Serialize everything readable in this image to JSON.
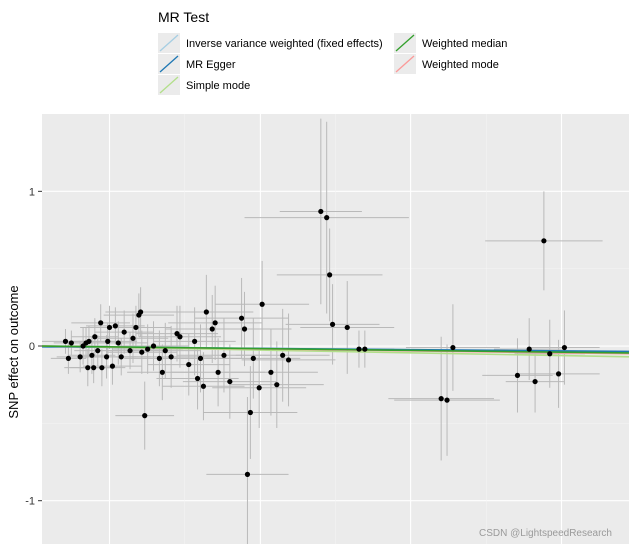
{
  "chart_data": {
    "type": "scatter",
    "title": "",
    "xlabel": "",
    "ylabel": "SNP effect on outcome",
    "ylim": [
      -1.28,
      1.5
    ],
    "xlim": [
      0,
      1
    ],
    "y_ticks": [
      "1",
      "0",
      "-1"
    ],
    "y_tick_values": [
      1,
      0,
      -1
    ],
    "grid": true,
    "legend": {
      "title": "MR Test",
      "placement": "top",
      "items": [
        {
          "label": "Inverse variance weighted (fixed effects)",
          "color": "#a6cee3"
        },
        {
          "label": "Weighted median",
          "color": "#33a02c"
        },
        {
          "label": "MR Egger",
          "color": "#1f78b4"
        },
        {
          "label": "Weighted mode",
          "color": "#fb9a99"
        },
        {
          "label": "Simple mode",
          "color": "#b2df8a"
        }
      ]
    },
    "lines": [
      {
        "name": "Inverse variance weighted (fixed effects)",
        "color": "#a6cee3",
        "x": [
          0,
          1
        ],
        "y": [
          0.0,
          -0.04
        ]
      },
      {
        "name": "MR Egger",
        "color": "#1f78b4",
        "x": [
          0,
          1
        ],
        "y": [
          -0.005,
          -0.035
        ]
      },
      {
        "name": "Simple mode",
        "color": "#b2df8a",
        "x": [
          0,
          1
        ],
        "y": [
          0.0,
          -0.07
        ]
      },
      {
        "name": "Weighted mode",
        "color": "#fb9a99",
        "x": [
          0,
          1
        ],
        "y": [
          0.0,
          -0.05
        ]
      },
      {
        "name": "Weighted median",
        "color": "#33a02c",
        "x": [
          0,
          1
        ],
        "y": [
          0.0,
          -0.045
        ]
      }
    ],
    "points": [
      {
        "x": 0.04,
        "y": 0.03,
        "xerr": 0.04,
        "yerr": 0.08
      },
      {
        "x": 0.045,
        "y": -0.08,
        "xerr": 0.03,
        "yerr": 0.1
      },
      {
        "x": 0.05,
        "y": 0.02,
        "xerr": 0.03,
        "yerr": 0.08
      },
      {
        "x": 0.065,
        "y": -0.07,
        "xerr": 0.04,
        "yerr": 0.1
      },
      {
        "x": 0.07,
        "y": 0.0,
        "xerr": 0.04,
        "yerr": 0.12
      },
      {
        "x": 0.075,
        "y": 0.02,
        "xerr": 0.04,
        "yerr": 0.1
      },
      {
        "x": 0.078,
        "y": -0.14,
        "xerr": 0.04,
        "yerr": 0.12
      },
      {
        "x": 0.08,
        "y": 0.03,
        "xerr": 0.04,
        "yerr": 0.1
      },
      {
        "x": 0.085,
        "y": -0.06,
        "xerr": 0.04,
        "yerr": 0.12
      },
      {
        "x": 0.088,
        "y": -0.14,
        "xerr": 0.04,
        "yerr": 0.1
      },
      {
        "x": 0.09,
        "y": 0.06,
        "xerr": 0.04,
        "yerr": 0.12
      },
      {
        "x": 0.095,
        "y": -0.03,
        "xerr": 0.04,
        "yerr": 0.1
      },
      {
        "x": 0.1,
        "y": 0.15,
        "xerr": 0.05,
        "yerr": 0.12
      },
      {
        "x": 0.102,
        "y": -0.14,
        "xerr": 0.04,
        "yerr": 0.12
      },
      {
        "x": 0.11,
        "y": -0.07,
        "xerr": 0.05,
        "yerr": 0.14
      },
      {
        "x": 0.112,
        "y": 0.03,
        "xerr": 0.05,
        "yerr": 0.12
      },
      {
        "x": 0.115,
        "y": 0.12,
        "xerr": 0.05,
        "yerr": 0.14
      },
      {
        "x": 0.12,
        "y": -0.13,
        "xerr": 0.05,
        "yerr": 0.12
      },
      {
        "x": 0.125,
        "y": 0.13,
        "xerr": 0.05,
        "yerr": 0.12
      },
      {
        "x": 0.13,
        "y": 0.02,
        "xerr": 0.05,
        "yerr": 0.14
      },
      {
        "x": 0.135,
        "y": -0.07,
        "xerr": 0.05,
        "yerr": 0.12
      },
      {
        "x": 0.14,
        "y": 0.09,
        "xerr": 0.05,
        "yerr": 0.14
      },
      {
        "x": 0.15,
        "y": -0.03,
        "xerr": 0.05,
        "yerr": 0.12
      },
      {
        "x": 0.155,
        "y": 0.05,
        "xerr": 0.06,
        "yerr": 0.16
      },
      {
        "x": 0.16,
        "y": 0.12,
        "xerr": 0.06,
        "yerr": 0.14
      },
      {
        "x": 0.165,
        "y": 0.2,
        "xerr": 0.06,
        "yerr": 0.14
      },
      {
        "x": 0.168,
        "y": 0.22,
        "xerr": 0.06,
        "yerr": 0.16
      },
      {
        "x": 0.17,
        "y": -0.04,
        "xerr": 0.06,
        "yerr": 0.14
      },
      {
        "x": 0.175,
        "y": -0.45,
        "xerr": 0.05,
        "yerr": 0.22
      },
      {
        "x": 0.18,
        "y": -0.02,
        "xerr": 0.06,
        "yerr": 0.16
      },
      {
        "x": 0.19,
        "y": 0.0,
        "xerr": 0.06,
        "yerr": 0.16
      },
      {
        "x": 0.2,
        "y": -0.08,
        "xerr": 0.06,
        "yerr": 0.18
      },
      {
        "x": 0.205,
        "y": -0.17,
        "xerr": 0.06,
        "yerr": 0.18
      },
      {
        "x": 0.21,
        "y": -0.03,
        "xerr": 0.06,
        "yerr": 0.18
      },
      {
        "x": 0.22,
        "y": -0.07,
        "xerr": 0.07,
        "yerr": 0.2
      },
      {
        "x": 0.23,
        "y": 0.08,
        "xerr": 0.07,
        "yerr": 0.18
      },
      {
        "x": 0.235,
        "y": 0.06,
        "xerr": 0.07,
        "yerr": 0.2
      },
      {
        "x": 0.25,
        "y": -0.12,
        "xerr": 0.07,
        "yerr": 0.2
      },
      {
        "x": 0.26,
        "y": 0.03,
        "xerr": 0.07,
        "yerr": 0.22
      },
      {
        "x": 0.265,
        "y": -0.21,
        "xerr": 0.07,
        "yerr": 0.2
      },
      {
        "x": 0.27,
        "y": -0.08,
        "xerr": 0.07,
        "yerr": 0.22
      },
      {
        "x": 0.275,
        "y": -0.26,
        "xerr": 0.07,
        "yerr": 0.22
      },
      {
        "x": 0.28,
        "y": 0.22,
        "xerr": 0.08,
        "yerr": 0.24
      },
      {
        "x": 0.29,
        "y": 0.11,
        "xerr": 0.08,
        "yerr": 0.22
      },
      {
        "x": 0.295,
        "y": 0.15,
        "xerr": 0.08,
        "yerr": 0.24
      },
      {
        "x": 0.3,
        "y": -0.17,
        "xerr": 0.08,
        "yerr": 0.22
      },
      {
        "x": 0.31,
        "y": -0.06,
        "xerr": 0.08,
        "yerr": 0.24
      },
      {
        "x": 0.32,
        "y": -0.23,
        "xerr": 0.08,
        "yerr": 0.24
      },
      {
        "x": 0.34,
        "y": 0.18,
        "xerr": 0.08,
        "yerr": 0.26
      },
      {
        "x": 0.345,
        "y": 0.11,
        "xerr": 0.08,
        "yerr": 0.24
      },
      {
        "x": 0.35,
        "y": -0.83,
        "xerr": 0.07,
        "yerr": 0.5
      },
      {
        "x": 0.355,
        "y": -0.43,
        "xerr": 0.08,
        "yerr": 0.3
      },
      {
        "x": 0.36,
        "y": -0.08,
        "xerr": 0.08,
        "yerr": 0.26
      },
      {
        "x": 0.37,
        "y": -0.27,
        "xerr": 0.08,
        "yerr": 0.26
      },
      {
        "x": 0.375,
        "y": 0.27,
        "xerr": 0.08,
        "yerr": 0.28
      },
      {
        "x": 0.39,
        "y": -0.17,
        "xerr": 0.08,
        "yerr": 0.28
      },
      {
        "x": 0.4,
        "y": -0.25,
        "xerr": 0.08,
        "yerr": 0.28
      },
      {
        "x": 0.41,
        "y": -0.06,
        "xerr": 0.08,
        "yerr": 0.3
      },
      {
        "x": 0.42,
        "y": -0.09,
        "xerr": 0.08,
        "yerr": 0.3
      },
      {
        "x": 0.475,
        "y": 0.87,
        "xerr": 0.07,
        "yerr": 0.6
      },
      {
        "x": 0.485,
        "y": 0.83,
        "xerr": 0.14,
        "yerr": 0.62
      },
      {
        "x": 0.49,
        "y": 0.46,
        "xerr": 0.09,
        "yerr": 0.3
      },
      {
        "x": 0.495,
        "y": 0.14,
        "xerr": 0.08,
        "yerr": 0.26
      },
      {
        "x": 0.52,
        "y": 0.12,
        "xerr": 0.08,
        "yerr": 0.3
      },
      {
        "x": 0.54,
        "y": -0.02,
        "xerr": 0.06,
        "yerr": 0.12
      },
      {
        "x": 0.55,
        "y": -0.02,
        "xerr": 0.05,
        "yerr": 0.12
      },
      {
        "x": 0.68,
        "y": -0.34,
        "xerr": 0.09,
        "yerr": 0.4
      },
      {
        "x": 0.69,
        "y": -0.35,
        "xerr": 0.09,
        "yerr": 0.36
      },
      {
        "x": 0.7,
        "y": -0.01,
        "xerr": 0.08,
        "yerr": 0.28
      },
      {
        "x": 0.81,
        "y": -0.19,
        "xerr": 0.06,
        "yerr": 0.24
      },
      {
        "x": 0.83,
        "y": -0.02,
        "xerr": 0.06,
        "yerr": 0.2
      },
      {
        "x": 0.84,
        "y": -0.23,
        "xerr": 0.05,
        "yerr": 0.2
      },
      {
        "x": 0.855,
        "y": 0.68,
        "xerr": 0.1,
        "yerr": 0.32
      },
      {
        "x": 0.865,
        "y": -0.05,
        "xerr": 0.06,
        "yerr": 0.22
      },
      {
        "x": 0.88,
        "y": -0.18,
        "xerr": 0.07,
        "yerr": 0.22
      },
      {
        "x": 0.89,
        "y": -0.01,
        "xerr": 0.06,
        "yerr": 0.24
      }
    ]
  },
  "watermark": "CSDN @LightspeedResearch"
}
